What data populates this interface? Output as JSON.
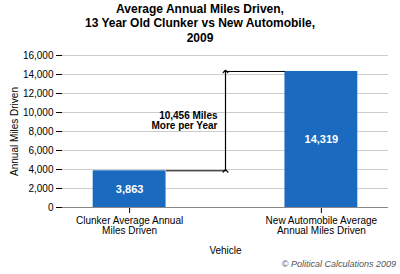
{
  "chart_data": {
    "type": "bar",
    "title": "Average Annual Miles Driven,\n13 Year Old Clunker vs New Automobile,\n2009",
    "categories": [
      "Clunker Average Annual Miles Driven",
      "New Automobile Average Annual Miles Driven"
    ],
    "values": [
      3863,
      14319
    ],
    "value_labels": [
      "3,863",
      "14,319"
    ],
    "data_labels": true,
    "color": "#1a6bbf",
    "xlabel": "Vehicle",
    "ylabel": "Annual Miles Driven",
    "ylim": [
      0,
      16000
    ],
    "yticks": [
      0,
      {
        "value": 2000,
        "label": "2,000"
      },
      {
        "value": 4000,
        "label": "4,000"
      },
      {
        "value": 6000,
        "label": "6,000"
      },
      {
        "value": 8000,
        "label": "8,000"
      },
      {
        "value": 10000,
        "label": "10,000"
      },
      {
        "value": 12000,
        "label": "12,000"
      },
      {
        "value": 14000,
        "label": "14,000"
      },
      {
        "value": 16000,
        "label": "16,000"
      }
    ],
    "grid": true,
    "annotation": "10,456 Miles\nMore per Year",
    "caption": "© Political Calculations 2009"
  }
}
